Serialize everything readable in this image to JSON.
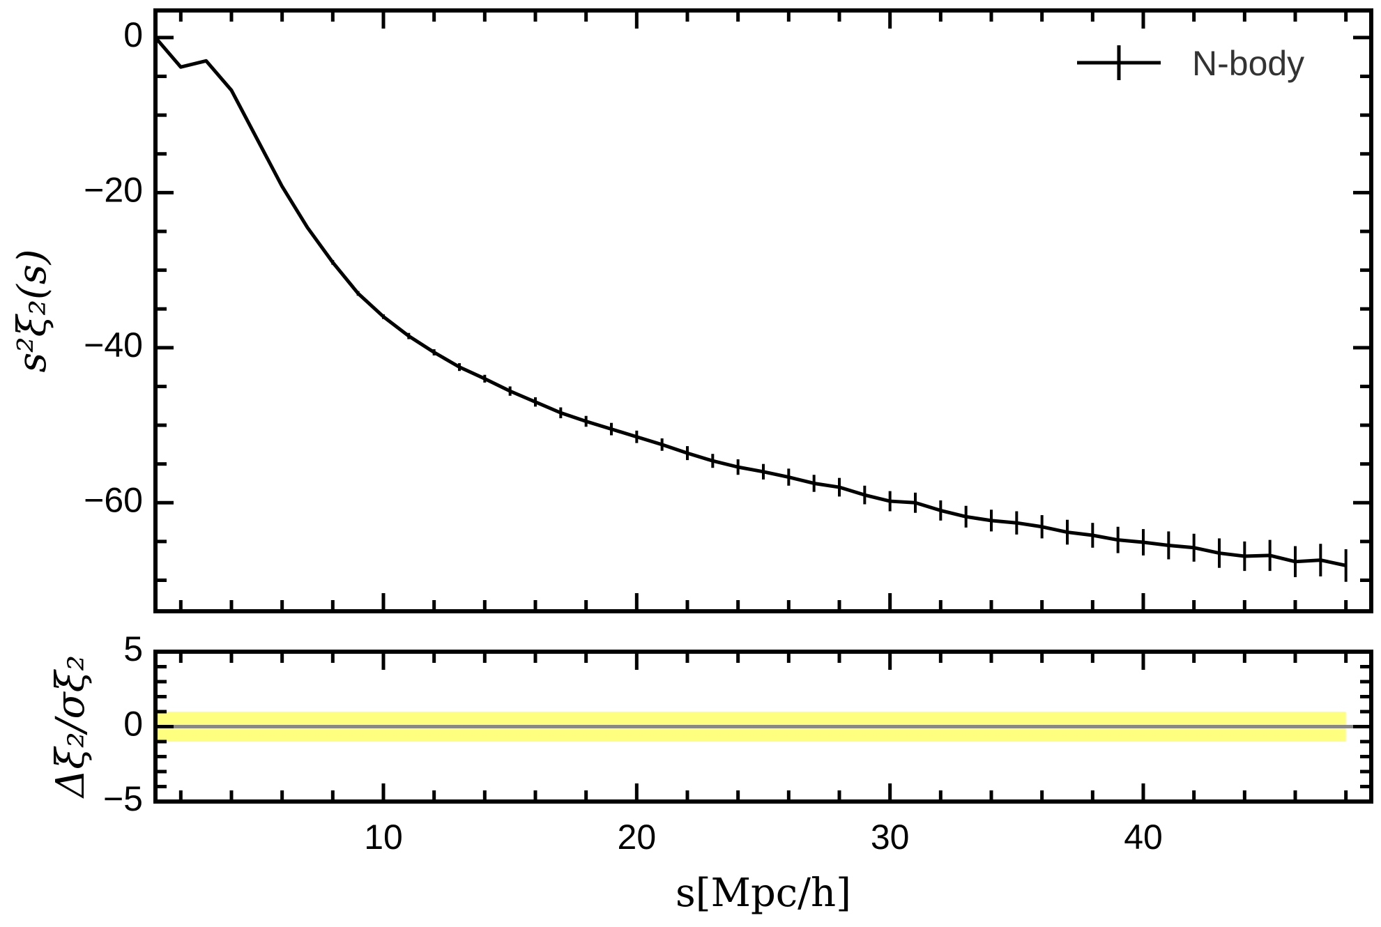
{
  "chart_data": [
    {
      "type": "line",
      "panel": "main",
      "ylabel": "s²ξ₂(s)",
      "xlim": [
        1,
        49
      ],
      "ylim": [
        -74,
        3.5
      ],
      "yticks": [
        0,
        -20,
        -40,
        -60
      ],
      "ytick_labels": [
        "0",
        "−20",
        "−40",
        "−60"
      ],
      "legend": {
        "label": "N-body",
        "placement": "top-right"
      },
      "series": [
        {
          "name": "N-body",
          "color": "#000000",
          "x": [
            1,
            2,
            3,
            4,
            5,
            6,
            7,
            8,
            9,
            10,
            11,
            12,
            13,
            14,
            15,
            16,
            17,
            18,
            19,
            20,
            21,
            22,
            23,
            24,
            25,
            26,
            27,
            28,
            29,
            30,
            31,
            32,
            33,
            34,
            35,
            36,
            37,
            38,
            39,
            40,
            41,
            42,
            43,
            44,
            45,
            46,
            47,
            48
          ],
          "y": [
            0,
            -3.8,
            -3.0,
            -6.8,
            -13.0,
            -19.2,
            -24.5,
            -29.0,
            -33.0,
            -36.0,
            -38.5,
            -40.6,
            -42.5,
            -44.0,
            -45.6,
            -47.0,
            -48.4,
            -49.5,
            -50.5,
            -51.5,
            -52.5,
            -53.6,
            -54.6,
            -55.4,
            -56.0,
            -56.7,
            -57.5,
            -58.0,
            -59.0,
            -59.8,
            -60.0,
            -61.0,
            -61.8,
            -62.3,
            -62.6,
            -63.1,
            -63.8,
            -64.2,
            -64.8,
            -65.1,
            -65.5,
            -65.8,
            -66.5,
            -66.9,
            -66.8,
            -67.6,
            -67.4,
            -68.1
          ],
          "yerr": [
            0,
            0,
            0,
            0,
            0,
            0,
            0,
            0.3,
            0.3,
            0.3,
            0.4,
            0.4,
            0.5,
            0.5,
            0.6,
            0.6,
            0.7,
            0.7,
            0.8,
            0.8,
            0.8,
            0.9,
            0.9,
            1.0,
            1.0,
            1.1,
            1.1,
            1.2,
            1.2,
            1.3,
            1.3,
            1.3,
            1.4,
            1.4,
            1.5,
            1.5,
            1.6,
            1.6,
            1.7,
            1.7,
            1.8,
            1.8,
            1.9,
            1.9,
            2.0,
            2.0,
            2.1,
            2.1
          ]
        }
      ]
    },
    {
      "type": "line",
      "panel": "residual",
      "xlabel": "s[Mpc/h]",
      "ylabel": "Δξ₂/σξ₂",
      "xlim": [
        1,
        49
      ],
      "ylim": [
        -5,
        5
      ],
      "yticks": [
        5,
        0,
        -5
      ],
      "ytick_labels": [
        "5",
        "0",
        "−5"
      ],
      "xticks": [
        10,
        20,
        30,
        40
      ],
      "xtick_labels": [
        "10",
        "20",
        "30",
        "40"
      ],
      "band": {
        "y0": -1,
        "y1": 1,
        "color": "#ffff7f"
      },
      "reference_line": {
        "y": 0,
        "color": "#888888"
      }
    }
  ]
}
